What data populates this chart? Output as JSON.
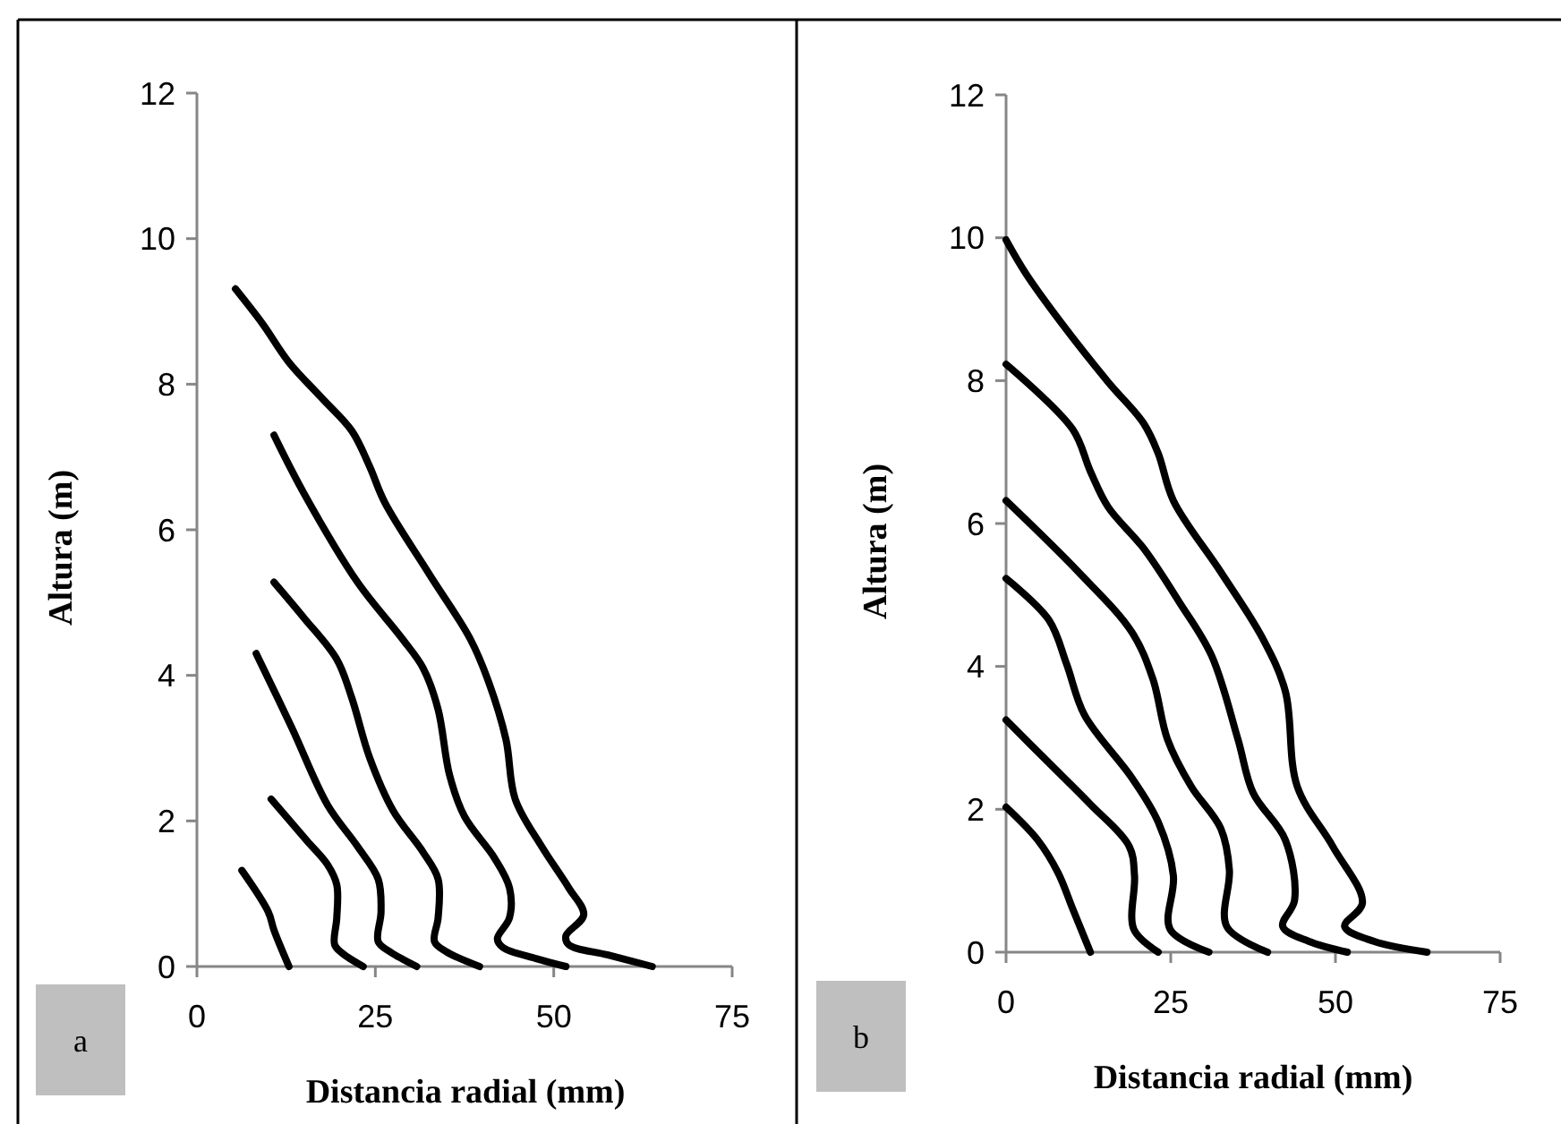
{
  "chart_data": [
    {
      "type": "line",
      "xlabel": "Distancia radial (mm)",
      "ylabel": "Altura (m)",
      "annotations": [
        "a"
      ],
      "xlim": [
        0,
        75
      ],
      "xticks": [
        0,
        25,
        50,
        75
      ],
      "ylim": [
        0,
        12
      ],
      "yticks": [
        0,
        2,
        4,
        6,
        8,
        10,
        12
      ],
      "grid": false,
      "marker": "none",
      "series": [
        {
          "color": "#000000",
          "x": [
            6.3,
            10,
            10.8,
            12.9
          ],
          "values": [
            1.32,
            0.75,
            0.5,
            0
          ]
        },
        {
          "color": "#000000",
          "x": [
            10.4,
            15.4,
            18.3,
            19.6,
            19.6,
            19.3,
            20.4,
            23.3
          ],
          "values": [
            2.3,
            1.73,
            1.4,
            1.12,
            0.67,
            0.3,
            0.18,
            0
          ]
        },
        {
          "color": "#000000",
          "x": [
            8.3,
            13.3,
            18.3,
            22.5,
            25.4,
            25.8,
            25.4,
            27.1,
            30.8
          ],
          "values": [
            4.3,
            3.28,
            2.22,
            1.65,
            1.2,
            0.75,
            0.34,
            0.2,
            0
          ]
        },
        {
          "color": "#000000",
          "x": [
            10.8,
            15,
            19.6,
            21.7,
            24.2,
            27.5,
            31.7,
            33.8,
            33.8,
            33.3,
            35,
            39.6
          ],
          "values": [
            5.28,
            4.79,
            4.22,
            3.69,
            2.87,
            2.14,
            1.57,
            1.2,
            0.67,
            0.34,
            0.2,
            0
          ]
        },
        {
          "color": "#000000",
          "x": [
            10.8,
            15,
            22.5,
            28.8,
            31.7,
            33.8,
            35.4,
            37.5,
            41.7,
            43.8,
            43.8,
            42.1,
            42.9,
            47.5,
            51.7
          ],
          "values": [
            7.3,
            6.5,
            5.28,
            4.5,
            4.1,
            3.53,
            2.63,
            2.06,
            1.49,
            1.08,
            0.67,
            0.38,
            0.26,
            0.11,
            0
          ]
        },
        {
          "color": "#000000",
          "x": [
            5.4,
            9.2,
            12.9,
            17.5,
            21.7,
            24.2,
            26.3,
            32.5,
            38.3,
            40.8,
            43.3,
            44.6,
            48.3,
            52.1,
            54.2,
            51.7,
            52.1,
            57.5,
            63.8
          ],
          "values": [
            9.31,
            8.83,
            8.3,
            7.81,
            7.36,
            6.87,
            6.38,
            5.4,
            4.5,
            3.93,
            3.12,
            2.3,
            1.65,
            1.08,
            0.71,
            0.42,
            0.3,
            0.16,
            0
          ]
        }
      ]
    },
    {
      "type": "line",
      "xlabel": "Distancia radial (mm)",
      "ylabel": "Altura (m)",
      "annotations": [
        "b"
      ],
      "xlim": [
        0,
        75
      ],
      "xticks": [
        0,
        25,
        50,
        75
      ],
      "ylim": [
        0,
        12
      ],
      "yticks": [
        0,
        2,
        4,
        6,
        8,
        10,
        12
      ],
      "grid": false,
      "marker": "none",
      "series": [
        {
          "color": "#000000",
          "x": [
            0,
            4.8,
            7.9,
            10.1,
            12.8
          ],
          "values": [
            2.03,
            1.57,
            1.11,
            0.61,
            0
          ]
        },
        {
          "color": "#000000",
          "x": [
            0,
            6.5,
            12.8,
            18.7,
            19.5,
            19.4,
            23.1
          ],
          "values": [
            3.25,
            2.65,
            2.07,
            1.48,
            1.07,
            0.32,
            0
          ]
        },
        {
          "color": "#000000",
          "x": [
            0,
            6.5,
            9.2,
            11.9,
            19.1,
            23.1,
            25.4,
            24.9,
            30.8
          ],
          "values": [
            5.23,
            4.65,
            4.03,
            3.32,
            2.44,
            1.82,
            1.07,
            0.32,
            0
          ]
        },
        {
          "color": "#000000",
          "x": [
            0,
            11,
            19.1,
            22.3,
            24.5,
            28.1,
            32.6,
            33.9,
            33.5,
            39.7
          ],
          "values": [
            6.32,
            5.32,
            4.48,
            3.82,
            2.98,
            2.32,
            1.73,
            1.15,
            0.36,
            0
          ]
        },
        {
          "color": "#000000",
          "x": [
            0,
            10.1,
            12.8,
            15.5,
            20.9,
            26.3,
            31.2,
            35.2,
            37.5,
            42.4,
            43.8,
            42,
            46,
            51.8
          ],
          "values": [
            8.23,
            7.32,
            6.73,
            6.23,
            5.65,
            4.9,
            4.15,
            2.98,
            2.23,
            1.57,
            0.73,
            0.36,
            0.15,
            0
          ]
        },
        {
          "color": "#000000",
          "x": [
            0,
            3,
            8.3,
            15.5,
            20.9,
            23.1,
            25.4,
            32.6,
            38.9,
            42.4,
            44.2,
            49.6,
            54.1,
            51.4,
            55.9,
            63.9
          ],
          "values": [
            9.97,
            9.5,
            8.82,
            7.98,
            7.4,
            6.98,
            6.32,
            5.32,
            4.4,
            3.65,
            2.32,
            1.48,
            0.69,
            0.36,
            0.15,
            0
          ]
        }
      ]
    }
  ]
}
